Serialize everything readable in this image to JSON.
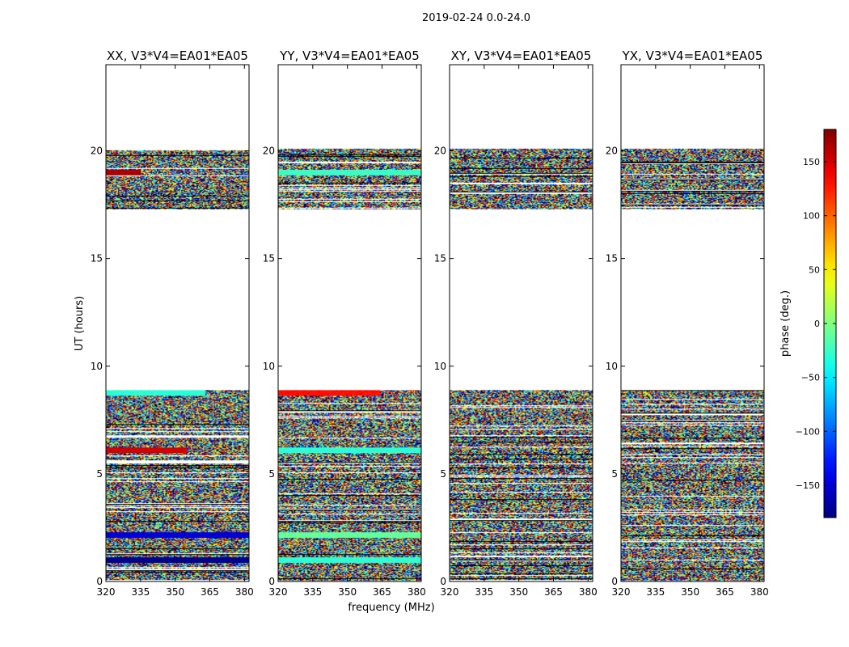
{
  "chart_data": {
    "type": "heatmap",
    "suptitle": "2019-02-24 0.0-24.0",
    "xlabel": "frequency (MHz)",
    "ylabel": "UT (hours)",
    "xlim": [
      320,
      382
    ],
    "ylim": [
      0,
      24
    ],
    "xticks": [
      320,
      335,
      350,
      365,
      380
    ],
    "yticks": [
      0,
      5,
      10,
      15,
      20
    ],
    "panels": [
      {
        "title": "XX, V3*V4=EA01*EA05",
        "product": "XX"
      },
      {
        "title": "YY, V3*V4=EA01*EA05",
        "product": "YY"
      },
      {
        "title": "XY, V3*V4=EA01*EA05",
        "product": "XY"
      },
      {
        "title": "YX, V3*V4=EA01*EA05",
        "product": "YX"
      }
    ],
    "data_blocks_ut_hours": [
      [
        0.05,
        8.9
      ],
      [
        17.3,
        20.1
      ]
    ],
    "coherent_rows": {
      "XX": [
        {
          "ut": 8.75,
          "phase": -30,
          "to_freq": 363
        },
        {
          "ut": 6.1,
          "phase": 150,
          "to_freq": 355
        },
        {
          "ut": 2.15,
          "phase": -150,
          "to_freq": 382
        },
        {
          "ut": 1.0,
          "phase": -175,
          "to_freq": 382
        },
        {
          "ut": 19.0,
          "phase": 165,
          "to_freq": 335
        }
      ],
      "YY": [
        {
          "ut": 8.75,
          "phase": 130,
          "to_freq": 364
        },
        {
          "ut": 6.1,
          "phase": -30,
          "to_freq": 382
        },
        {
          "ut": 2.15,
          "phase": -10,
          "to_freq": 382
        },
        {
          "ut": 1.0,
          "phase": -30,
          "to_freq": 382
        },
        {
          "ut": 19.0,
          "phase": -25,
          "to_freq": 382
        }
      ],
      "XY": [],
      "YX": []
    },
    "colorbar": {
      "label": "phase (deg.)",
      "min": -180,
      "max": 180,
      "ticks": [
        150,
        100,
        50,
        0,
        -50,
        -100,
        -150
      ],
      "colormap": "jet"
    }
  }
}
